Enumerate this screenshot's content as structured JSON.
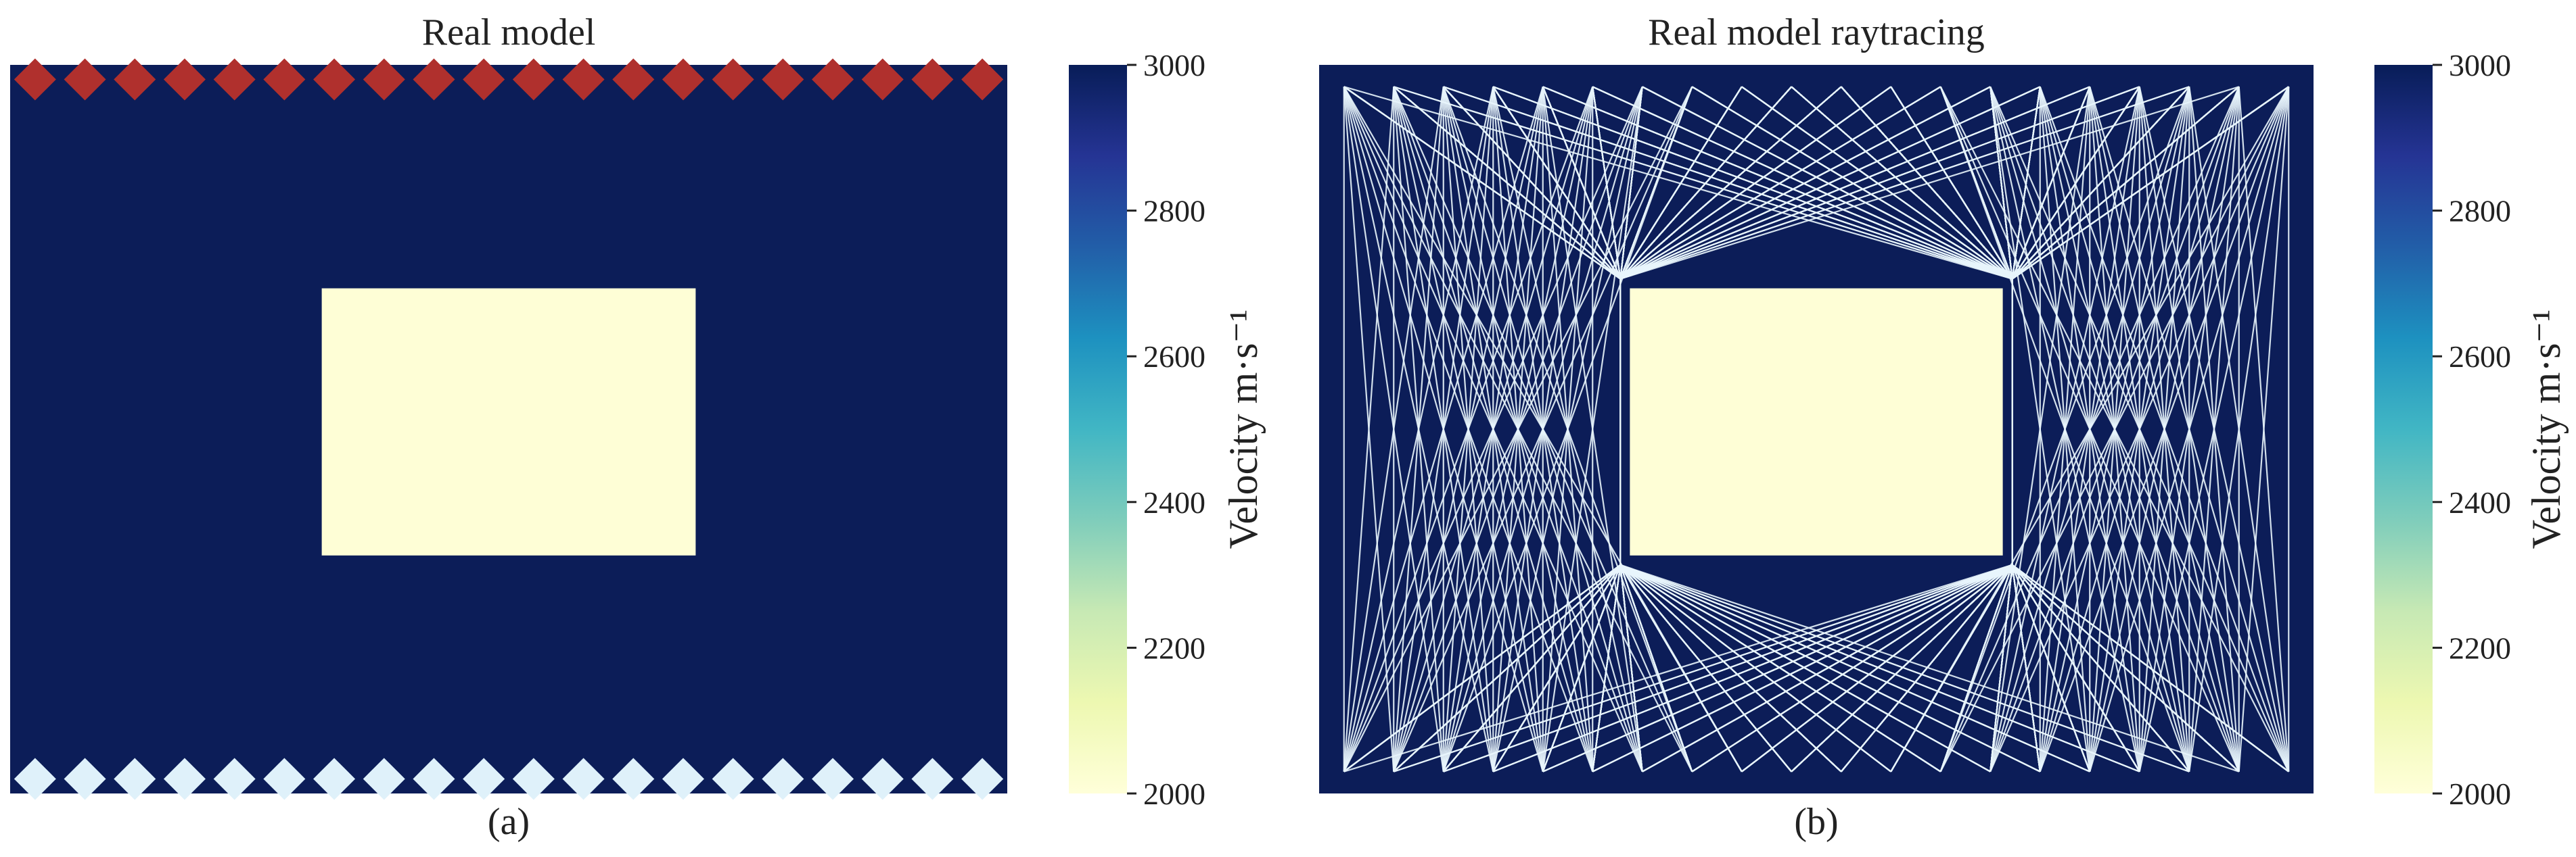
{
  "figure": {
    "panels": [
      {
        "caption": "(a)"
      },
      {
        "caption": "(b)"
      }
    ]
  },
  "chart_data": [
    {
      "type": "heatmap",
      "title": "Real model",
      "colormap": "YlGnBu",
      "colors": {
        "background_velocity": "#0c1d58",
        "anomaly_velocity": "#fefed6",
        "sources": "#b0302d",
        "receivers": "#dff1fa"
      },
      "model": {
        "x_range": [
          0,
          20
        ],
        "z_range": [
          0,
          15
        ],
        "background_velocity": 3000,
        "anomaly": {
          "x": [
            6.25,
            13.75
          ],
          "z": [
            4.6,
            10.1
          ],
          "velocity": 2000
        }
      },
      "sources": {
        "z": 0.3,
        "x": [
          0.5,
          1.5,
          2.5,
          3.5,
          4.5,
          5.5,
          6.5,
          7.5,
          8.5,
          9.5,
          10.5,
          11.5,
          12.5,
          13.5,
          14.5,
          15.5,
          16.5,
          17.5,
          18.5,
          19.5
        ]
      },
      "receivers": {
        "z": 14.7,
        "x": [
          0.5,
          1.5,
          2.5,
          3.5,
          4.5,
          5.5,
          6.5,
          7.5,
          8.5,
          9.5,
          10.5,
          11.5,
          12.5,
          13.5,
          14.5,
          15.5,
          16.5,
          17.5,
          18.5,
          19.5
        ]
      },
      "colorbar": {
        "label": "Velocity m·s⁻¹",
        "range": [
          2000,
          3000
        ],
        "ticks": [
          "2000",
          "2200",
          "2400",
          "2600",
          "2800",
          "3000"
        ]
      }
    },
    {
      "type": "heatmap",
      "title": "Real model raytracing",
      "colormap": "YlGnBu",
      "colors": {
        "rays": "#e8f5fc"
      },
      "model": {
        "x_range": [
          0,
          20
        ],
        "z_range": [
          0,
          15
        ],
        "background_velocity": 3000,
        "anomaly": {
          "x": [
            6.25,
            13.75
          ],
          "z": [
            4.6,
            10.1
          ],
          "velocity": 2000
        }
      },
      "rays": {
        "source_z": 0.45,
        "receiver_z": 14.55,
        "x": [
          0.5,
          1.5,
          2.5,
          3.5,
          4.5,
          5.5,
          6.5,
          7.5,
          8.5,
          9.5,
          10.5,
          11.5,
          12.5,
          13.5,
          14.5,
          15.5,
          16.5,
          17.5,
          18.5,
          19.5
        ],
        "source_indices": [
          0,
          1,
          2,
          3,
          4,
          5,
          6,
          7,
          8,
          9,
          10,
          11,
          12,
          13,
          14,
          15,
          16,
          17,
          18,
          19
        ],
        "receiver_indices": [
          0,
          1,
          2,
          3,
          4,
          5,
          6,
          7,
          8,
          9,
          10,
          11,
          12,
          13,
          14,
          15,
          16,
          17,
          18,
          19
        ]
      },
      "colorbar": {
        "label": "Velocity m·s⁻¹",
        "range": [
          2000,
          3000
        ],
        "ticks": [
          "2000",
          "2200",
          "2400",
          "2600",
          "2800",
          "3000"
        ]
      }
    }
  ]
}
